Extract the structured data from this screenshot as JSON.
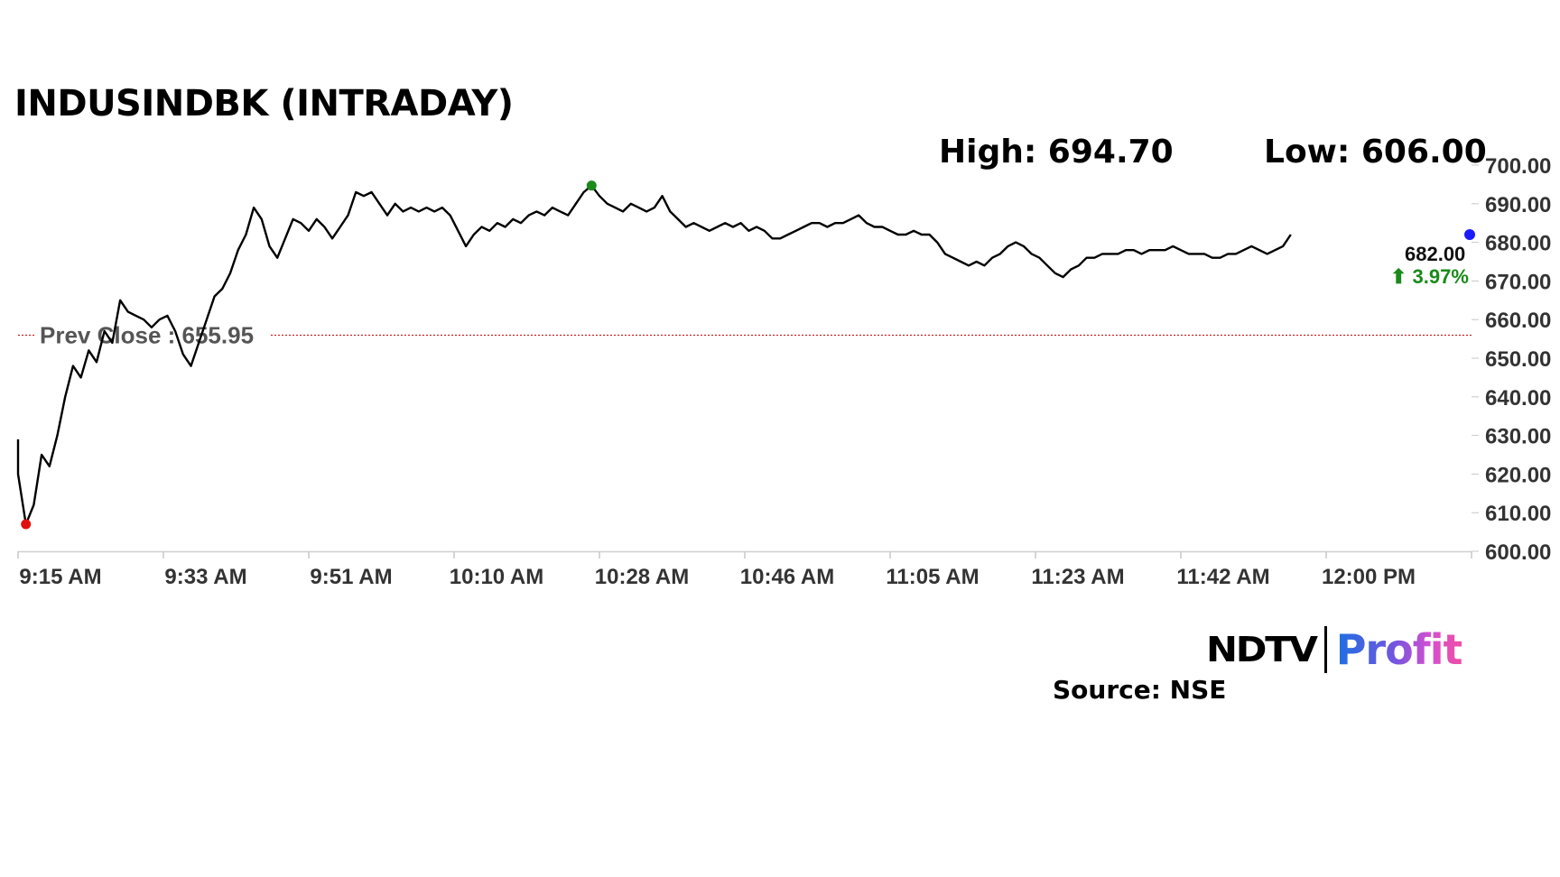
{
  "header": {
    "title": "INDUSINDBK (INTRADAY)",
    "high_text": "High: 694.70",
    "low_text": "Low: 606.00"
  },
  "footer": {
    "brand_ndtv": "NDTV",
    "brand_profit": "Profit",
    "source": "Source: NSE"
  },
  "chart_data": {
    "type": "line",
    "title": "INDUSINDBK (INTRADAY)",
    "xlabel": "",
    "ylabel": "",
    "ylim": [
      600,
      700
    ],
    "yticks": [
      "700.00",
      "690.00",
      "680.00",
      "670.00",
      "660.00",
      "650.00",
      "640.00",
      "630.00",
      "620.00",
      "610.00",
      "600.00"
    ],
    "xticks": [
      "9:15 AM",
      "9:33 AM",
      "9:51 AM",
      "10:10 AM",
      "10:28 AM",
      "10:46 AM",
      "11:05 AM",
      "11:23 AM",
      "11:42 AM",
      "12:00 PM"
    ],
    "x_start": "09:15",
    "x_end": "12:15",
    "prev_close": 655.95,
    "prev_close_label": "Prev Close : 655.95",
    "last_price": "682.00",
    "change_text": "⬆ 3.97%",
    "high": 694.7,
    "low": 606.0,
    "colors": {
      "line": "#000000",
      "prev_close": "#cc2222",
      "high_marker": "#1a8a1a",
      "low_marker": "#e01010",
      "last_marker": "#1a1aff",
      "change": "#1a8a1a"
    },
    "series": [
      {
        "values": [
          [
            "09:15",
            629
          ],
          [
            "09:15",
            620
          ],
          [
            "09:16",
            607
          ],
          [
            "09:17",
            612
          ],
          [
            "09:18",
            625
          ],
          [
            "09:19",
            622
          ],
          [
            "09:20",
            630
          ],
          [
            "09:21",
            640
          ],
          [
            "09:22",
            648
          ],
          [
            "09:23",
            645
          ],
          [
            "09:24",
            652
          ],
          [
            "09:25",
            649
          ],
          [
            "09:26",
            657
          ],
          [
            "09:27",
            654
          ],
          [
            "09:28",
            665
          ],
          [
            "09:29",
            662
          ],
          [
            "09:30",
            661
          ],
          [
            "09:31",
            660
          ],
          [
            "09:32",
            658
          ],
          [
            "09:33",
            660
          ],
          [
            "09:34",
            661
          ],
          [
            "09:35",
            657
          ],
          [
            "09:36",
            651
          ],
          [
            "09:37",
            648
          ],
          [
            "09:38",
            654
          ],
          [
            "09:39",
            660
          ],
          [
            "09:40",
            666
          ],
          [
            "09:41",
            668
          ],
          [
            "09:42",
            672
          ],
          [
            "09:43",
            678
          ],
          [
            "09:44",
            682
          ],
          [
            "09:45",
            689
          ],
          [
            "09:46",
            686
          ],
          [
            "09:47",
            679
          ],
          [
            "09:48",
            676
          ],
          [
            "09:49",
            681
          ],
          [
            "09:50",
            686
          ],
          [
            "09:51",
            685
          ],
          [
            "09:52",
            683
          ],
          [
            "09:53",
            686
          ],
          [
            "09:54",
            684
          ],
          [
            "09:55",
            681
          ],
          [
            "09:56",
            684
          ],
          [
            "09:57",
            687
          ],
          [
            "09:58",
            693
          ],
          [
            "09:59",
            692
          ],
          [
            "10:00",
            693
          ],
          [
            "10:01",
            690
          ],
          [
            "10:02",
            687
          ],
          [
            "10:03",
            690
          ],
          [
            "10:04",
            688
          ],
          [
            "10:05",
            689
          ],
          [
            "10:06",
            688
          ],
          [
            "10:07",
            689
          ],
          [
            "10:08",
            688
          ],
          [
            "10:09",
            689
          ],
          [
            "10:10",
            687
          ],
          [
            "10:11",
            683
          ],
          [
            "10:12",
            679
          ],
          [
            "10:13",
            682
          ],
          [
            "10:14",
            684
          ],
          [
            "10:15",
            683
          ],
          [
            "10:16",
            685
          ],
          [
            "10:17",
            684
          ],
          [
            "10:18",
            686
          ],
          [
            "10:19",
            685
          ],
          [
            "10:20",
            687
          ],
          [
            "10:21",
            688
          ],
          [
            "10:22",
            687
          ],
          [
            "10:23",
            689
          ],
          [
            "10:24",
            688
          ],
          [
            "10:25",
            687
          ],
          [
            "10:26",
            690
          ],
          [
            "10:27",
            693
          ],
          [
            "10:28",
            694.7
          ],
          [
            "10:29",
            692
          ],
          [
            "10:30",
            690
          ],
          [
            "10:31",
            689
          ],
          [
            "10:32",
            688
          ],
          [
            "10:33",
            690
          ],
          [
            "10:34",
            689
          ],
          [
            "10:35",
            688
          ],
          [
            "10:36",
            689
          ],
          [
            "10:37",
            692
          ],
          [
            "10:38",
            688
          ],
          [
            "10:39",
            686
          ],
          [
            "10:40",
            684
          ],
          [
            "10:41",
            685
          ],
          [
            "10:42",
            684
          ],
          [
            "10:43",
            683
          ],
          [
            "10:44",
            684
          ],
          [
            "10:45",
            685
          ],
          [
            "10:46",
            684
          ],
          [
            "10:47",
            685
          ],
          [
            "10:48",
            683
          ],
          [
            "10:49",
            684
          ],
          [
            "10:50",
            683
          ],
          [
            "10:51",
            681
          ],
          [
            "10:52",
            681
          ],
          [
            "10:53",
            682
          ],
          [
            "10:54",
            683
          ],
          [
            "10:55",
            684
          ],
          [
            "10:56",
            685
          ],
          [
            "10:57",
            685
          ],
          [
            "10:58",
            684
          ],
          [
            "10:59",
            685
          ],
          [
            "11:00",
            685
          ],
          [
            "11:01",
            686
          ],
          [
            "11:02",
            687
          ],
          [
            "11:03",
            685
          ],
          [
            "11:04",
            684
          ],
          [
            "11:05",
            684
          ],
          [
            "11:06",
            683
          ],
          [
            "11:07",
            682
          ],
          [
            "11:08",
            682
          ],
          [
            "11:09",
            683
          ],
          [
            "11:10",
            682
          ],
          [
            "11:11",
            682
          ],
          [
            "11:12",
            680
          ],
          [
            "11:13",
            677
          ],
          [
            "11:14",
            676
          ],
          [
            "11:15",
            675
          ],
          [
            "11:16",
            674
          ],
          [
            "11:17",
            675
          ],
          [
            "11:18",
            674
          ],
          [
            "11:19",
            676
          ],
          [
            "11:20",
            677
          ],
          [
            "11:21",
            679
          ],
          [
            "11:22",
            680
          ],
          [
            "11:23",
            679
          ],
          [
            "11:24",
            677
          ],
          [
            "11:25",
            676
          ],
          [
            "11:26",
            674
          ],
          [
            "11:27",
            672
          ],
          [
            "11:28",
            671
          ],
          [
            "11:29",
            673
          ],
          [
            "11:30",
            674
          ],
          [
            "11:31",
            676
          ],
          [
            "11:32",
            676
          ],
          [
            "11:33",
            677
          ],
          [
            "11:34",
            677
          ],
          [
            "11:35",
            677
          ],
          [
            "11:36",
            678
          ],
          [
            "11:37",
            678
          ],
          [
            "11:38",
            677
          ],
          [
            "11:39",
            678
          ],
          [
            "11:40",
            678
          ],
          [
            "11:41",
            678
          ],
          [
            "11:42",
            679
          ],
          [
            "11:43",
            678
          ],
          [
            "11:44",
            677
          ],
          [
            "11:45",
            677
          ],
          [
            "11:46",
            677
          ],
          [
            "11:47",
            676
          ],
          [
            "11:48",
            676
          ],
          [
            "11:49",
            677
          ],
          [
            "11:50",
            677
          ],
          [
            "11:51",
            678
          ],
          [
            "11:52",
            679
          ],
          [
            "11:53",
            678
          ],
          [
            "11:54",
            677
          ],
          [
            "11:55",
            678
          ],
          [
            "11:56",
            679
          ],
          [
            "11:57",
            682
          ]
        ]
      }
    ]
  }
}
